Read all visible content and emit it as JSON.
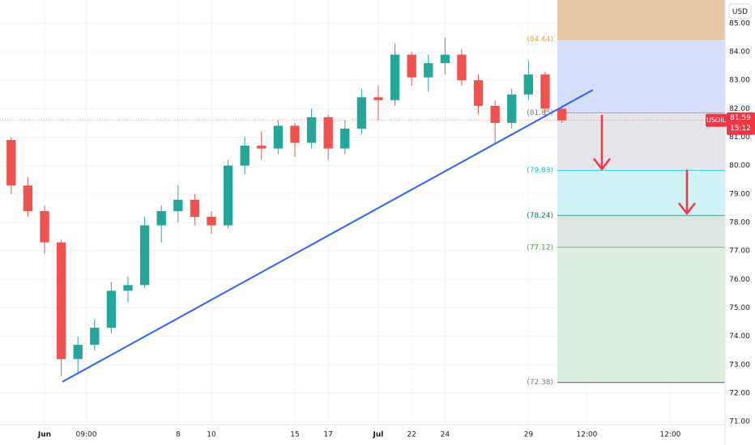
{
  "chart_data": {
    "type": "candlestick",
    "symbol": "USOIL",
    "currency": "USD",
    "last_price": 81.59,
    "countdown": "15:12",
    "up_color": "#26a69a",
    "down_color": "#ef5350",
    "grid": true,
    "x": [
      -2,
      -1,
      0,
      1,
      2,
      3,
      4,
      5,
      6,
      7,
      8,
      9,
      10,
      11,
      12,
      13,
      14,
      15,
      16,
      17,
      18,
      19,
      20,
      21,
      22,
      23,
      24,
      25,
      26,
      27,
      28,
      29,
      30,
      31
    ],
    "open": [
      80.9,
      79.3,
      78.4,
      77.3,
      73.2,
      73.7,
      74.3,
      75.6,
      75.8,
      77.9,
      78.4,
      78.8,
      78.2,
      77.9,
      80.0,
      80.7,
      80.6,
      81.4,
      80.8,
      81.7,
      80.6,
      81.3,
      82.4,
      82.3,
      83.9,
      83.1,
      83.6,
      83.9,
      83.0,
      82.1,
      81.5,
      82.5,
      83.2,
      82.0
    ],
    "high": [
      81.0,
      79.6,
      78.6,
      77.4,
      74.0,
      74.6,
      75.9,
      76.1,
      78.2,
      78.6,
      79.3,
      79.0,
      78.4,
      80.2,
      81.0,
      81.2,
      81.6,
      81.5,
      82.0,
      81.8,
      81.6,
      82.7,
      82.8,
      84.3,
      84.0,
      83.9,
      84.5,
      84.1,
      83.2,
      82.3,
      82.7,
      83.7,
      83.3,
      82.1
    ],
    "low": [
      79.0,
      78.2,
      76.9,
      72.6,
      72.7,
      73.5,
      74.1,
      75.2,
      75.7,
      77.3,
      78.0,
      77.9,
      77.6,
      77.8,
      79.7,
      80.2,
      80.4,
      80.3,
      80.6,
      80.2,
      80.4,
      81.1,
      81.6,
      82.1,
      82.8,
      82.6,
      83.2,
      82.8,
      81.8,
      80.8,
      81.3,
      82.3,
      81.7,
      81.5
    ],
    "close": [
      79.3,
      78.4,
      77.3,
      73.2,
      73.7,
      74.3,
      75.6,
      75.8,
      77.9,
      78.4,
      78.8,
      78.2,
      77.9,
      80.0,
      80.7,
      80.6,
      81.4,
      80.8,
      81.7,
      80.6,
      81.3,
      82.4,
      82.3,
      83.9,
      83.1,
      83.6,
      83.9,
      83.0,
      82.1,
      81.5,
      82.5,
      83.2,
      82.0,
      81.59
    ],
    "xlim": [
      -2.67,
      40.78
    ],
    "xticks": [
      {
        "value": 0,
        "label": "Jun"
      },
      {
        "value": 2.5,
        "label": "09:00"
      },
      10.0,
      17.0,
      24.0,
      {
        "value": 20,
        "label": "Jul"
      },
      8,
      15,
      {
        "value": 32.5,
        "label": "12:00"
      },
      22,
      {
        "value": 37.5,
        "label": "12:00"
      },
      29
    ],
    "ylim": [
      70.89,
      85.82
    ],
    "yticks": [
      {
        "value": 71,
        "label": "71.00"
      },
      {
        "value": 72,
        "label": "72.00"
      },
      {
        "value": 73,
        "label": "73.00"
      },
      {
        "value": 74,
        "label": "74.00"
      },
      {
        "value": 75,
        "label": "75.00"
      },
      {
        "value": 76,
        "label": "76.00"
      },
      {
        "value": 77,
        "label": "77.00"
      },
      {
        "value": 78,
        "label": "78.00"
      },
      {
        "value": 79,
        "label": "79.00"
      },
      {
        "value": 80,
        "label": "80.00"
      },
      {
        "value": 81,
        "label": "81.00"
      },
      {
        "value": 82,
        "label": "82.00"
      },
      {
        "value": 83,
        "label": "83.00"
      },
      {
        "value": 84,
        "label": "84.00"
      },
      {
        "value": 85,
        "label": "85.00"
      }
    ],
    "trendline": {
      "x": [
        1.07,
        32.86
      ],
      "y": [
        72.4,
        82.66
      ],
      "color": "#2962ff"
    },
    "levels": [
      {
        "value": 84.44,
        "label": "(84.44)",
        "color": "#f7a21b",
        "fill": "#e6c8a6"
      },
      {
        "value": 81.85,
        "label": "(81.85)",
        "color": "#787b86",
        "fill": "#d5defb"
      },
      {
        "value": 79.83,
        "label": "(79.83)",
        "color": "#00bcd4",
        "fill": "#e3e5ea"
      },
      {
        "value": 78.24,
        "label": "(78.24)",
        "color": "#00796b",
        "fill": "#d0f3f5"
      },
      {
        "value": 77.12,
        "label": "(77.12)",
        "color": "#43a047",
        "fill": "#dbe7e1"
      },
      {
        "value": 72.38,
        "label": "(72.38)",
        "color": "#787b86",
        "fill": "#d9efdb"
      }
    ]
  }
}
